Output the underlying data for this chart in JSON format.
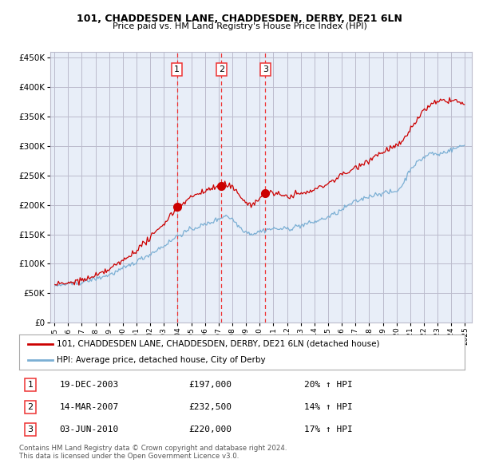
{
  "title": "101, CHADDESDEN LANE, CHADDESDEN, DERBY, DE21 6LN",
  "subtitle": "Price paid vs. HM Land Registry's House Price Index (HPI)",
  "legend_property": "101, CHADDESDEN LANE, CHADDESDEN, DERBY, DE21 6LN (detached house)",
  "legend_hpi": "HPI: Average price, detached house, City of Derby",
  "footer": "Contains HM Land Registry data © Crown copyright and database right 2024.\nThis data is licensed under the Open Government Licence v3.0.",
  "sales": [
    {
      "num": 1,
      "date": "19-DEC-2003",
      "price": 197000,
      "pct": "20%",
      "dir": "↑",
      "year": 2003.96
    },
    {
      "num": 2,
      "date": "14-MAR-2007",
      "price": 232500,
      "pct": "14%",
      "dir": "↑",
      "year": 2007.2
    },
    {
      "num": 3,
      "date": "03-JUN-2010",
      "price": 220000,
      "pct": "17%",
      "dir": "↑",
      "year": 2010.42
    }
  ],
  "red_line_color": "#cc0000",
  "blue_line_color": "#7bafd4",
  "sale_marker_color": "#cc0000",
  "vline_color": "#ee3333",
  "background_color": "#ffffff",
  "chart_bg_color": "#e8eef8",
  "grid_color": "#bbbbcc",
  "ylim": [
    0,
    460000
  ],
  "yticks": [
    0,
    50000,
    100000,
    150000,
    200000,
    250000,
    300000,
    350000,
    400000,
    450000
  ],
  "xlim_start": 1994.7,
  "xlim_end": 2025.5
}
